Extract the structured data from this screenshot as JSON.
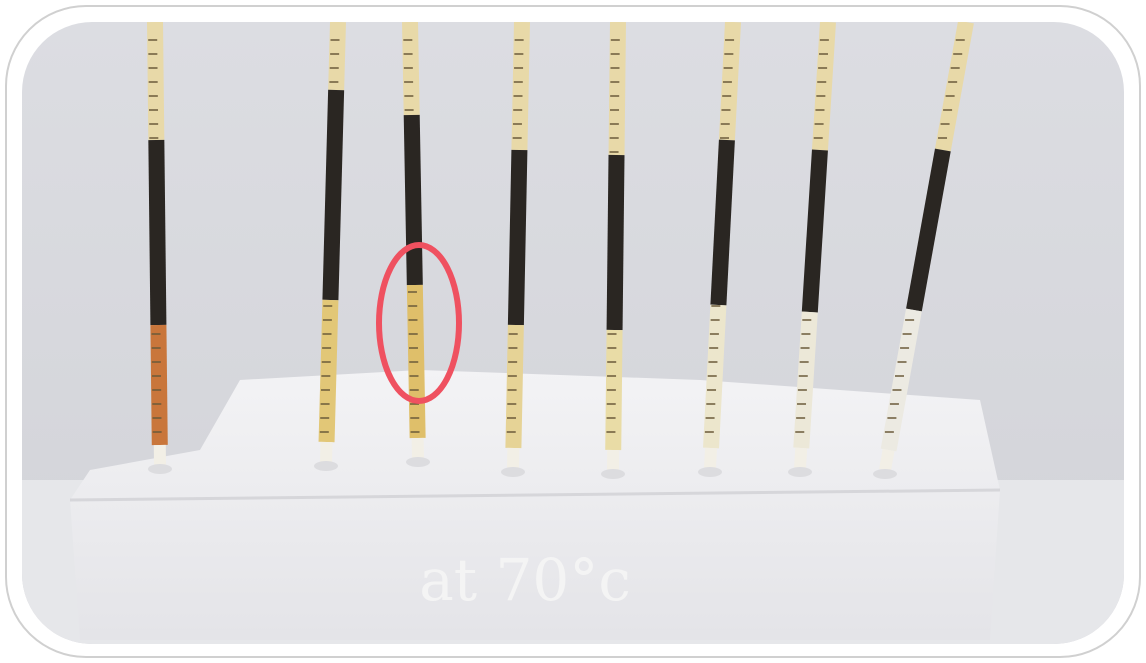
{
  "caption": "at 70°c"
}
